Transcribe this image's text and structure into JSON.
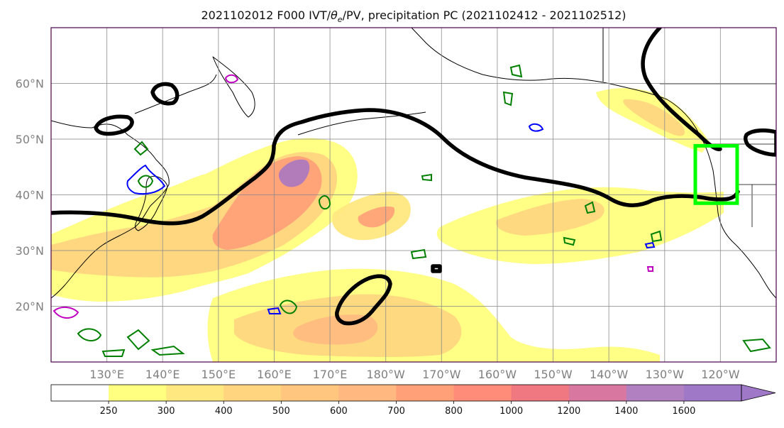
{
  "title": {
    "main": "2021102012 F000 IVT/",
    "theta": "θ",
    "theta_sub": "e",
    "rest": "/PV, precipitation PC (2021102412 - 2021102512)"
  },
  "map": {
    "lon_range": [
      120,
      250
    ],
    "lat_range": [
      10,
      70
    ],
    "lon_ticks": [
      {
        "lon": 130,
        "label": "130°E"
      },
      {
        "lon": 140,
        "label": "140°E"
      },
      {
        "lon": 150,
        "label": "150°E"
      },
      {
        "lon": 160,
        "label": "160°E"
      },
      {
        "lon": 170,
        "label": "170°E"
      },
      {
        "lon": 180,
        "label": "180°W"
      },
      {
        "lon": 190,
        "label": "170°W"
      },
      {
        "lon": 200,
        "label": "160°W"
      },
      {
        "lon": 210,
        "label": "150°W"
      },
      {
        "lon": 220,
        "label": "140°W"
      },
      {
        "lon": 230,
        "label": "130°W"
      },
      {
        "lon": 240,
        "label": "120°W"
      }
    ],
    "lat_ticks": [
      {
        "lat": 20,
        "label": "20°N"
      },
      {
        "lat": 30,
        "label": "30°N"
      },
      {
        "lat": 40,
        "label": "40°N"
      },
      {
        "lat": 50,
        "label": "50°N"
      },
      {
        "lat": 60,
        "label": "60°N"
      }
    ],
    "gridlines": true,
    "region_box": {
      "lon_min": 235.5,
      "lon_max": 243,
      "lat_min": 38.5,
      "lat_max": 48.8,
      "color": "#00ff00"
    },
    "contour_colors": {
      "pv_line": "#000000",
      "theta_e_low": "#008000",
      "theta_e_mid": "#0000ff",
      "theta_e_high": "#c000c0"
    }
  },
  "colorbar": {
    "levels": [
      250,
      300,
      400,
      500,
      600,
      700,
      800,
      1000,
      1200,
      1400,
      1600
    ],
    "labels": [
      "250",
      "300",
      "400",
      "500",
      "600",
      "700",
      "800",
      "1000",
      "1200",
      "1400",
      "1600"
    ],
    "colors": [
      "#ffffff",
      "#ffff80",
      "#ffe880",
      "#ffd580",
      "#ffc680",
      "#ffb880",
      "#ffa078",
      "#ff8c78",
      "#f07880",
      "#d878a0",
      "#b080c0",
      "#a078c8"
    ],
    "extend": "max"
  }
}
